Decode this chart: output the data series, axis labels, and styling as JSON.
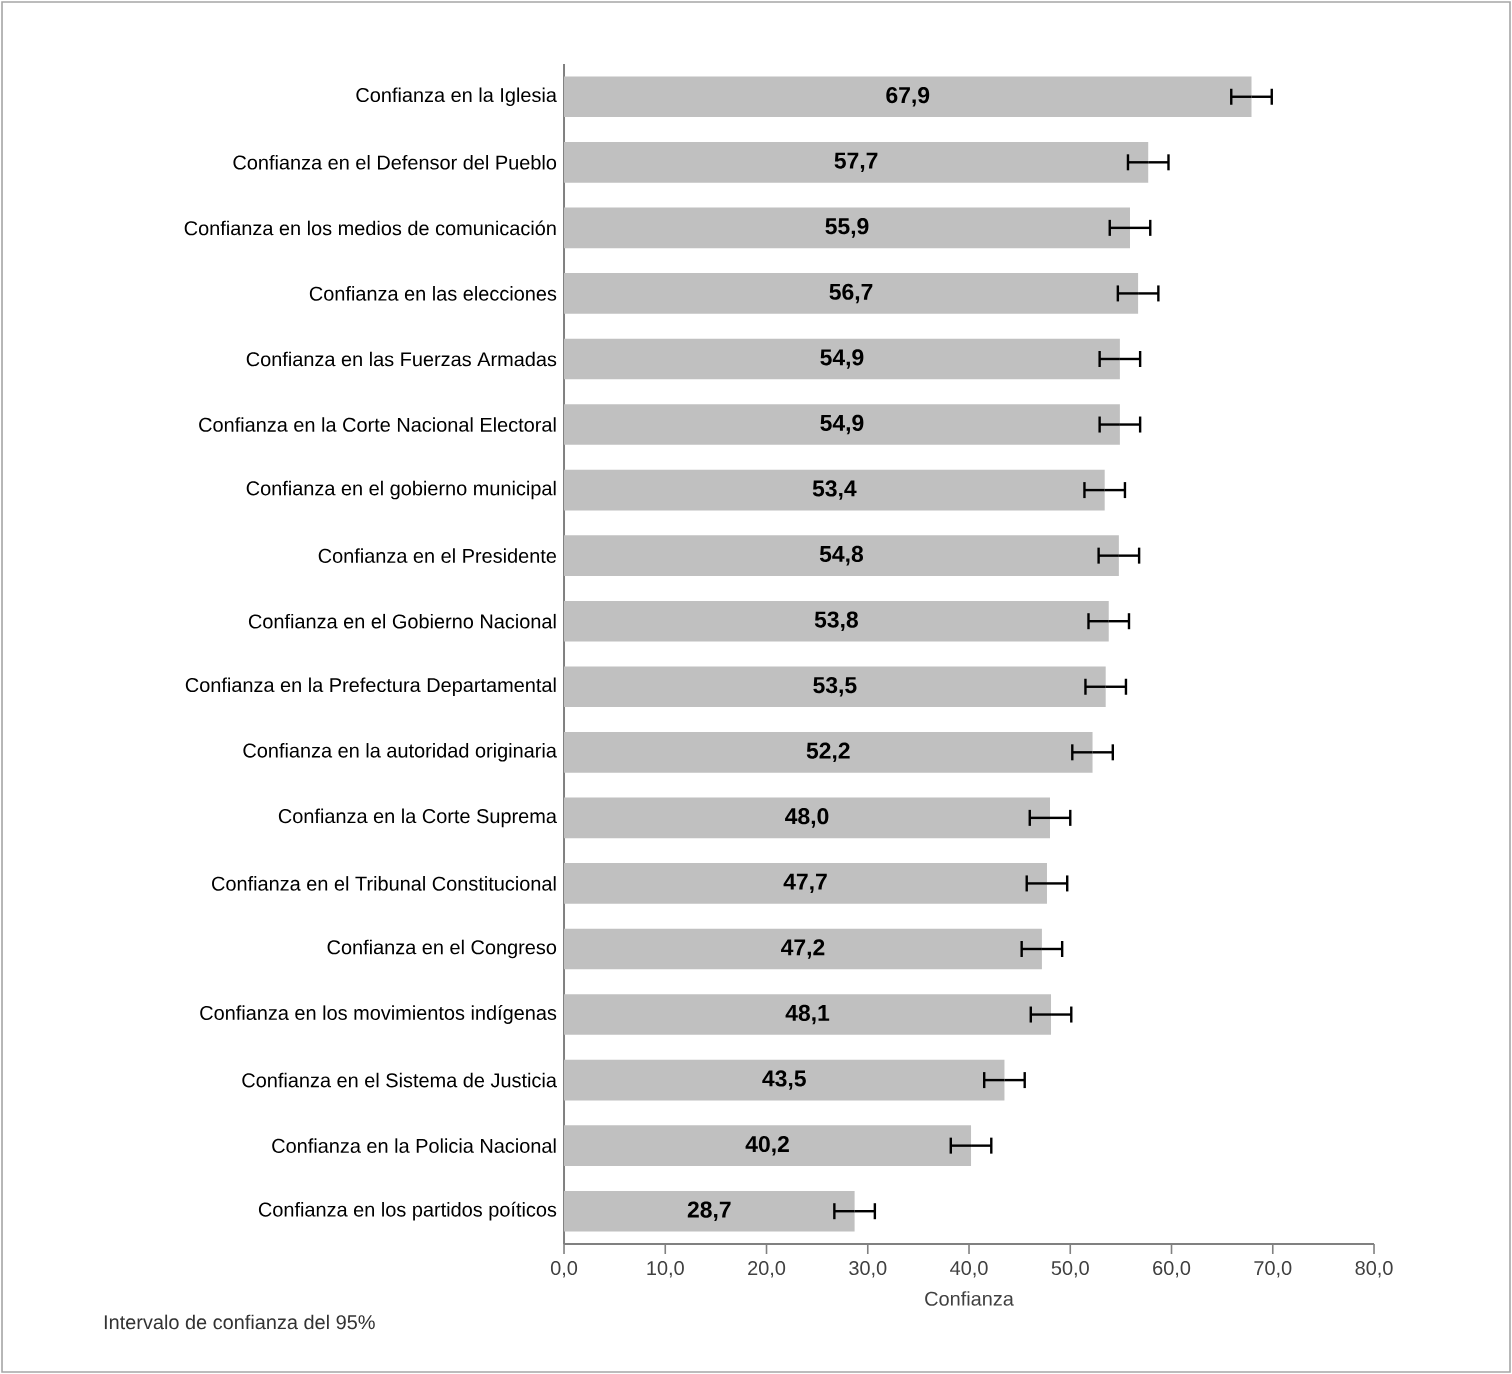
{
  "chart_data": {
    "type": "bar",
    "orientation": "horizontal",
    "xlabel": "Confianza",
    "categories": [
      "Confianza en la Iglesia",
      "Confianza en el Defensor del Pueblo",
      "Confianza en los medios de comunicación",
      "Confianza en las elecciones",
      "Confianza en las Fuerzas Armadas",
      "Confianza en la Corte Nacional Electoral",
      "Confianza en el gobierno municipal",
      "Confianza en el Presidente",
      "Confianza en el Gobierno Nacional",
      "Confianza en la Prefectura Departamental",
      "Confianza en la autoridad originaria",
      "Confianza en la Corte Suprema",
      "Confianza en el Tribunal Constitucional",
      "Confianza en el Congreso",
      "Confianza en los movimientos indígenas",
      "Confianza en el Sistema de Justicia",
      "Confianza en la Policia Nacional",
      "Confianza en los partidos poíticos"
    ],
    "values": [
      67.9,
      57.7,
      55.9,
      56.7,
      54.9,
      54.9,
      53.4,
      54.8,
      53.8,
      53.5,
      52.2,
      48.0,
      47.7,
      47.2,
      48.1,
      43.5,
      40.2,
      28.7
    ],
    "errors": [
      2,
      2,
      2,
      2,
      2,
      2,
      2,
      2,
      2,
      2,
      2,
      2,
      2,
      2,
      2,
      2,
      2,
      2
    ],
    "value_labels": [
      "67,9",
      "57,7",
      "55,9",
      "56,7",
      "54,9",
      "54,9",
      "53,4",
      "54,8",
      "53,8",
      "53,5",
      "52,2",
      "48,0",
      "47,7",
      "47,2",
      "48,1",
      "43,5",
      "40,2",
      "28,7"
    ],
    "color": "#c0c0c0",
    "xlim": [
      0,
      80
    ],
    "xticks": [
      {
        "value": 0,
        "label": "0,0"
      },
      {
        "value": 10,
        "label": "10,0"
      },
      {
        "value": 20,
        "label": "20,0"
      },
      {
        "value": 30,
        "label": "30,0"
      },
      {
        "value": 40,
        "label": "40,0"
      },
      {
        "value": 50,
        "label": "50,0"
      },
      {
        "value": 60,
        "label": "60,0"
      },
      {
        "value": 70,
        "label": "70,0"
      },
      {
        "value": 80,
        "label": "80,0"
      }
    ],
    "annotations": [
      "Intervalo de confianza del 95%"
    ]
  }
}
